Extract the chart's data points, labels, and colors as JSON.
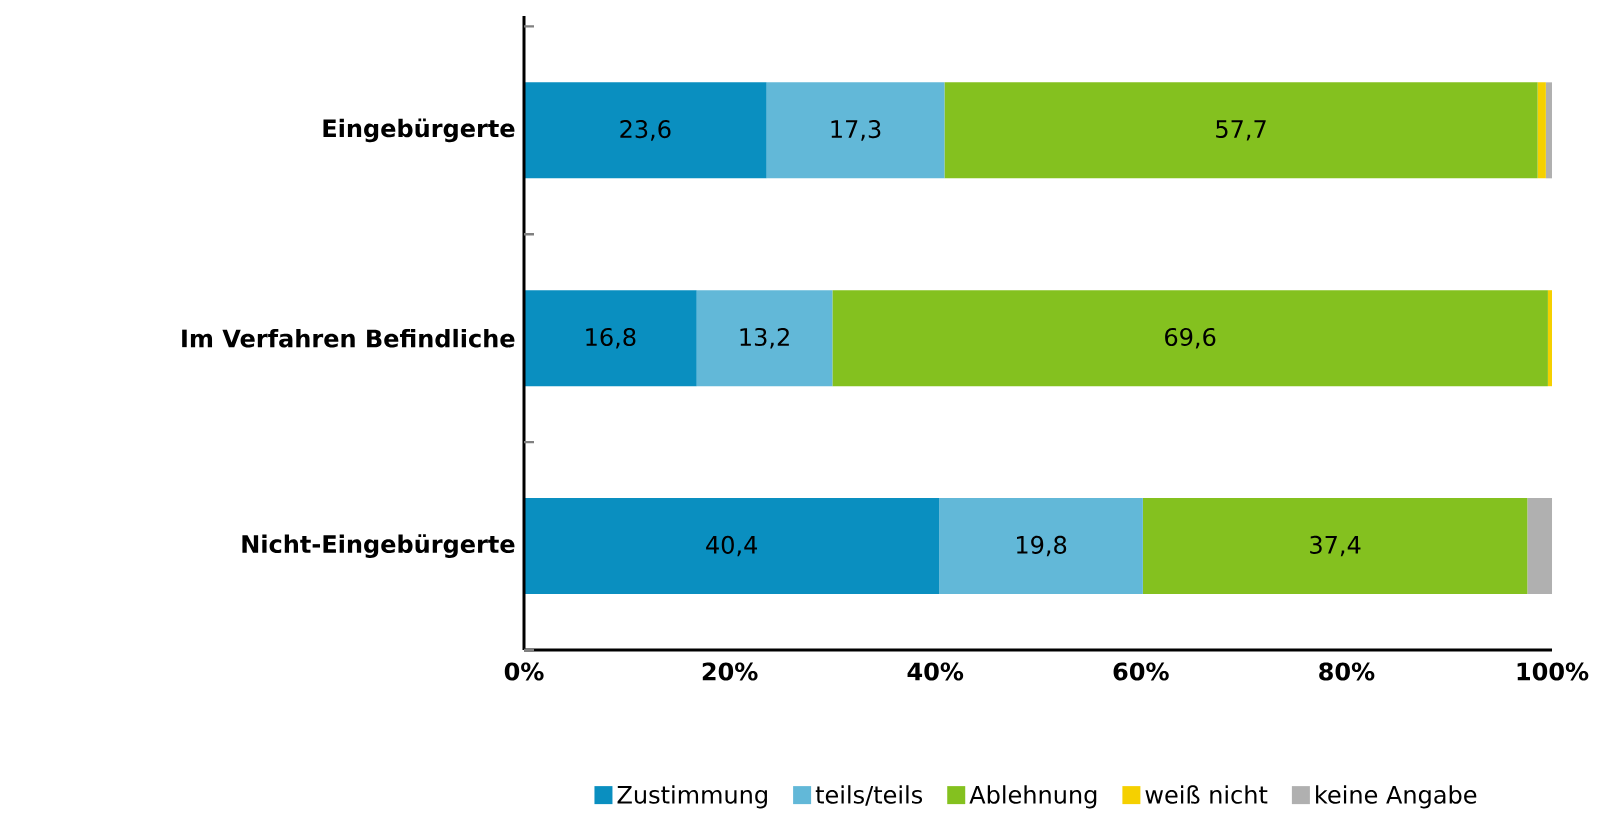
{
  "chart_data": {
    "type": "bar",
    "orientation": "horizontal",
    "stacked": true,
    "categories": [
      "Eingebürgerte",
      "Im Verfahren Befindliche",
      "Nicht-Eingebürgerte"
    ],
    "series": [
      {
        "name": "Zustimmung",
        "color": "#0a8fc0",
        "values": [
          23.6,
          16.8,
          40.4
        ],
        "value_labels": [
          "23,6",
          "16,8",
          "40,4"
        ]
      },
      {
        "name": "teils/teils",
        "color": "#62b8d8",
        "values": [
          17.3,
          13.2,
          19.8
        ],
        "value_labels": [
          "17,3",
          "13,2",
          "19,8"
        ]
      },
      {
        "name": "Ablehnung",
        "color": "#84c11f",
        "values": [
          57.7,
          69.6,
          37.4
        ],
        "value_labels": [
          "57,7",
          "69,6",
          "37,4"
        ]
      },
      {
        "name": "weiß nicht",
        "color": "#f5d000",
        "values": [
          0.8,
          0.4,
          0.0
        ]
      },
      {
        "name": "keine Angabe",
        "color": "#b0b0b0",
        "values": [
          0.6,
          0.0,
          2.4
        ]
      }
    ],
    "xlim": [
      0,
      100
    ],
    "xticks": [
      {
        "value": 0,
        "label": "0%"
      },
      {
        "value": 20,
        "label": "20%"
      },
      {
        "value": 40,
        "label": "40%"
      },
      {
        "value": 60,
        "label": "60%"
      },
      {
        "value": 80,
        "label": "80%"
      },
      {
        "value": 100,
        "label": "100%"
      }
    ],
    "legend": "bottom",
    "grid": false
  }
}
